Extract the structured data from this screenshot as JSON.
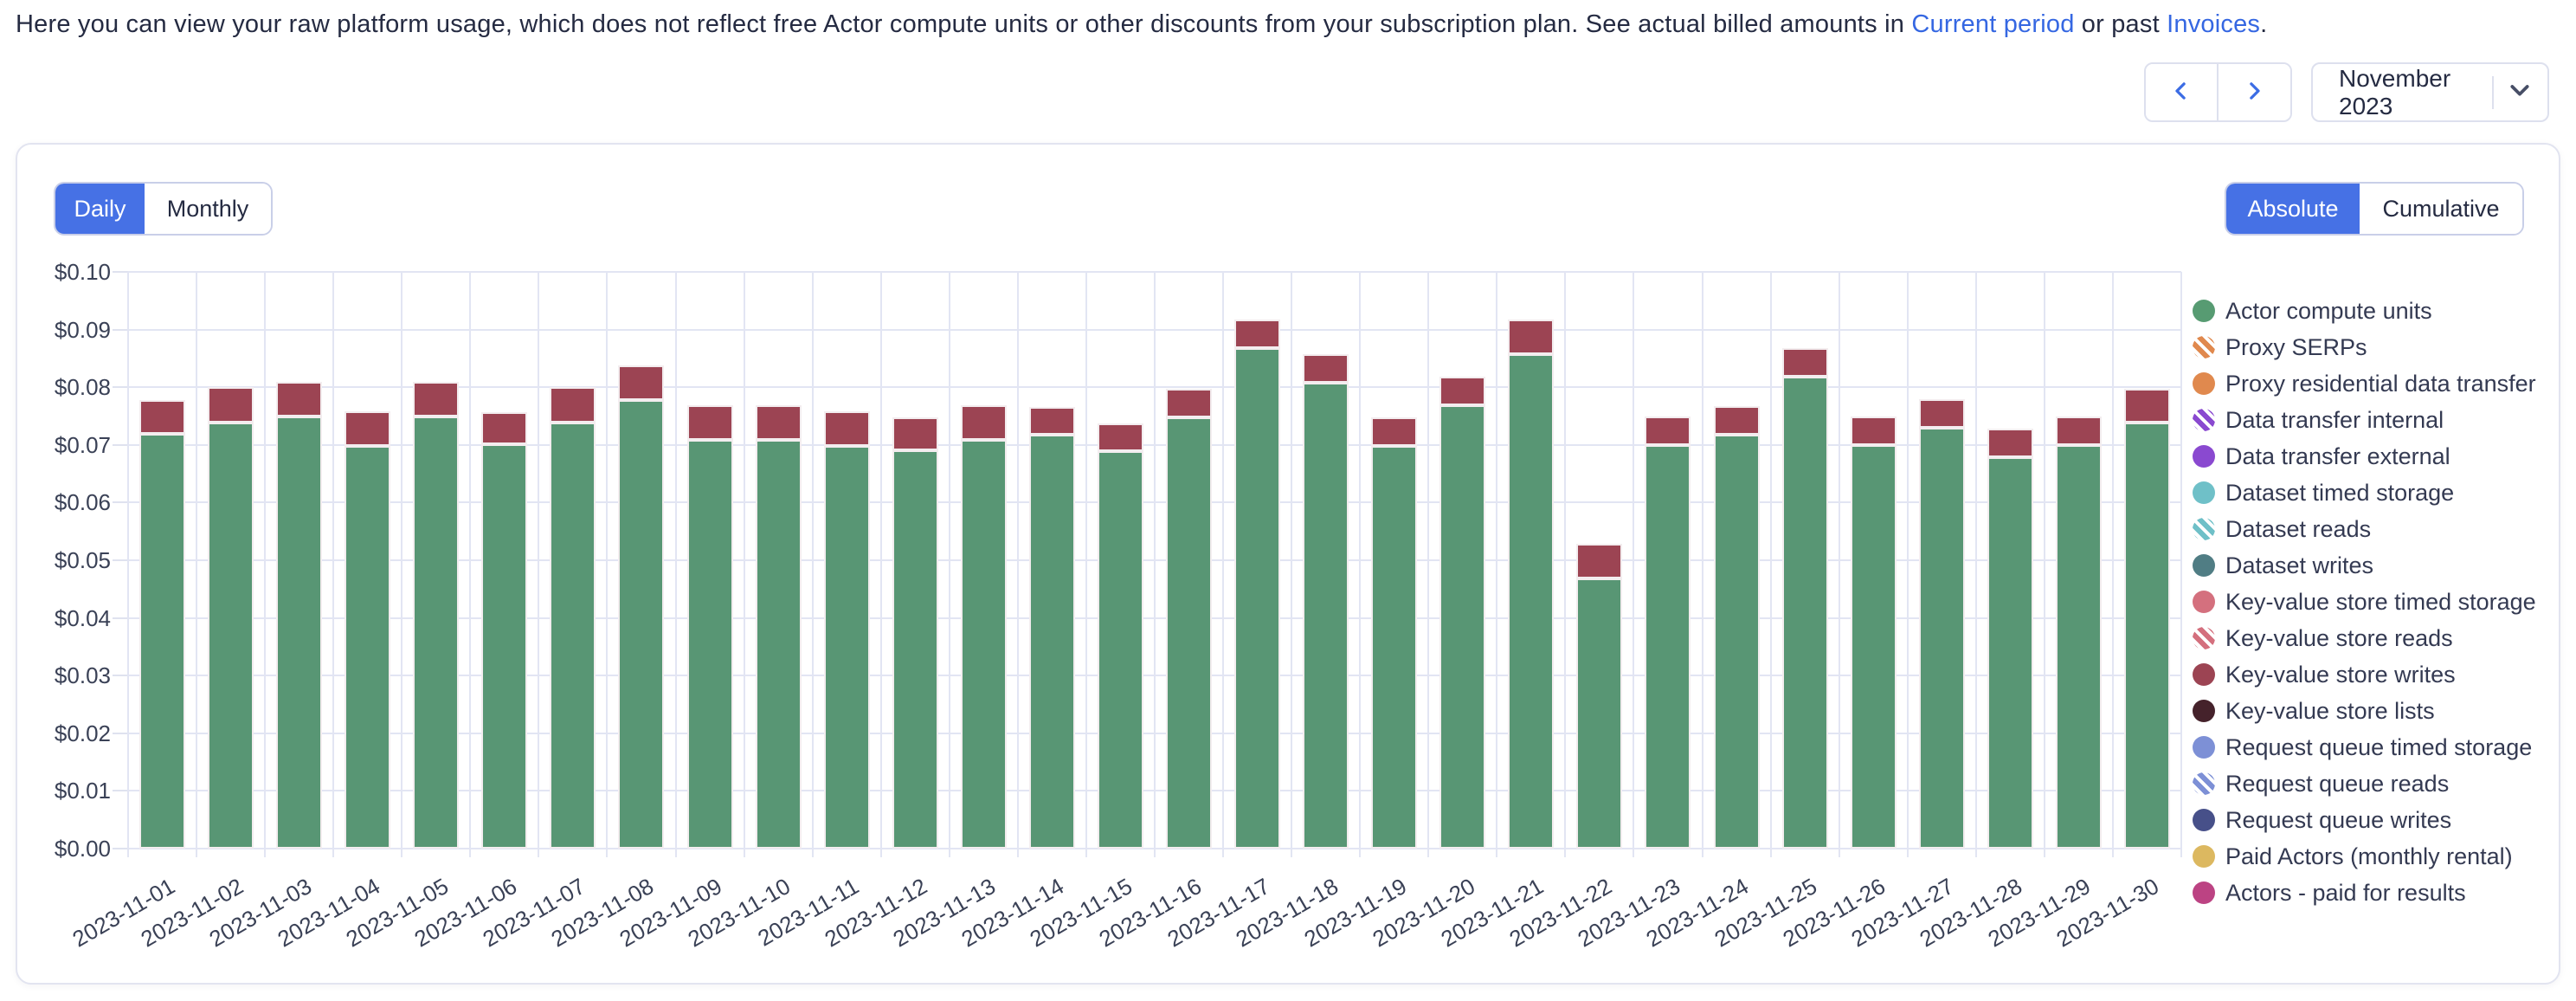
{
  "header": {
    "text_prefix": "Here you can view your raw platform usage, which does not reflect free Actor compute units or other discounts from your subscription plan. See actual billed amounts in ",
    "link_current_period": "Current period",
    "text_middle": " or past ",
    "link_invoices": "Invoices",
    "text_suffix": "."
  },
  "period_nav": {
    "prev_icon": "chevron-left-icon",
    "next_icon": "chevron-right-icon",
    "selected_month": "November 2023",
    "dropdown_icon": "chevron-down-icon"
  },
  "view_toggles": {
    "granularity": {
      "options": [
        "Daily",
        "Monthly"
      ],
      "selected": "Daily"
    },
    "mode": {
      "options": [
        "Absolute",
        "Cumulative"
      ],
      "selected": "Absolute"
    }
  },
  "colors": {
    "accent_blue": "#4671e5",
    "link_blue": "#3567e2",
    "gridline": "#e2e5f3",
    "bar_actor_compute_units": "#589674",
    "bar_key_value_store_writes": "#9c4453"
  },
  "chart_data": {
    "type": "bar",
    "stacked": true,
    "title": "",
    "xlabel": "",
    "ylabel": "",
    "ylim": [
      0,
      0.1
    ],
    "y_tick_labels": [
      "$0.00",
      "$0.01",
      "$0.02",
      "$0.03",
      "$0.04",
      "$0.05",
      "$0.06",
      "$0.07",
      "$0.08",
      "$0.09",
      "$0.10"
    ],
    "grid": true,
    "legend_position": "right",
    "x_label_rotation_deg": -30,
    "categories": [
      "2023-11-01",
      "2023-11-02",
      "2023-11-03",
      "2023-11-04",
      "2023-11-05",
      "2023-11-06",
      "2023-11-07",
      "2023-11-08",
      "2023-11-09",
      "2023-11-10",
      "2023-11-11",
      "2023-11-12",
      "2023-11-13",
      "2023-11-14",
      "2023-11-15",
      "2023-11-16",
      "2023-11-17",
      "2023-11-18",
      "2023-11-19",
      "2023-11-20",
      "2023-11-21",
      "2023-11-22",
      "2023-11-23",
      "2023-11-24",
      "2023-11-25",
      "2023-11-26",
      "2023-11-27",
      "2023-11-28",
      "2023-11-29",
      "2023-11-30"
    ],
    "series": [
      {
        "key": "actor_compute_units",
        "name": "Actor compute units",
        "color": "#589674",
        "values": [
          0.0719,
          0.0738,
          0.0749,
          0.0698,
          0.0749,
          0.0701,
          0.0738,
          0.0778,
          0.0708,
          0.0708,
          0.0698,
          0.069,
          0.0708,
          0.0718,
          0.0689,
          0.0748,
          0.0868,
          0.0808,
          0.0698,
          0.0769,
          0.0857,
          0.0468,
          0.0699,
          0.0718,
          0.0819,
          0.0699,
          0.0729,
          0.0679,
          0.0699,
          0.0739
        ]
      },
      {
        "key": "key_value_store_writes",
        "name": "Key-value store writes",
        "color": "#9c4453",
        "values": [
          0.0059,
          0.0061,
          0.006,
          0.006,
          0.006,
          0.0056,
          0.0061,
          0.006,
          0.006,
          0.006,
          0.006,
          0.0057,
          0.006,
          0.0048,
          0.0048,
          0.005,
          0.0049,
          0.0049,
          0.005,
          0.0049,
          0.006,
          0.006,
          0.0049,
          0.005,
          0.0049,
          0.0049,
          0.0049,
          0.0049,
          0.005,
          0.0059
        ]
      }
    ]
  },
  "legend": [
    {
      "label": "Actor compute units",
      "color": "#579b72",
      "pattern": "solid"
    },
    {
      "label": "Proxy SERPs",
      "color": "#e0894e",
      "pattern": "striped"
    },
    {
      "label": "Proxy residential data transfer",
      "color": "#e0894e",
      "pattern": "solid"
    },
    {
      "label": "Data transfer internal",
      "color": "#8a49d0",
      "pattern": "striped"
    },
    {
      "label": "Data transfer external",
      "color": "#8a49d0",
      "pattern": "solid"
    },
    {
      "label": "Dataset timed storage",
      "color": "#6fc0c8",
      "pattern": "solid"
    },
    {
      "label": "Dataset reads",
      "color": "#6fc0c8",
      "pattern": "striped"
    },
    {
      "label": "Dataset writes",
      "color": "#507d84",
      "pattern": "solid"
    },
    {
      "label": "Key-value store timed storage",
      "color": "#d4707e",
      "pattern": "solid"
    },
    {
      "label": "Key-value store reads",
      "color": "#d4707e",
      "pattern": "striped"
    },
    {
      "label": "Key-value store writes",
      "color": "#9c4453",
      "pattern": "solid"
    },
    {
      "label": "Key-value store lists",
      "color": "#45222b",
      "pattern": "solid"
    },
    {
      "label": "Request queue timed storage",
      "color": "#7d90d6",
      "pattern": "solid"
    },
    {
      "label": "Request queue reads",
      "color": "#7d90d6",
      "pattern": "striped"
    },
    {
      "label": "Request queue writes",
      "color": "#475089",
      "pattern": "solid"
    },
    {
      "label": "Paid Actors (monthly rental)",
      "color": "#dcb860",
      "pattern": "solid"
    },
    {
      "label": "Actors - paid for results",
      "color": "#bc4383",
      "pattern": "solid"
    }
  ]
}
